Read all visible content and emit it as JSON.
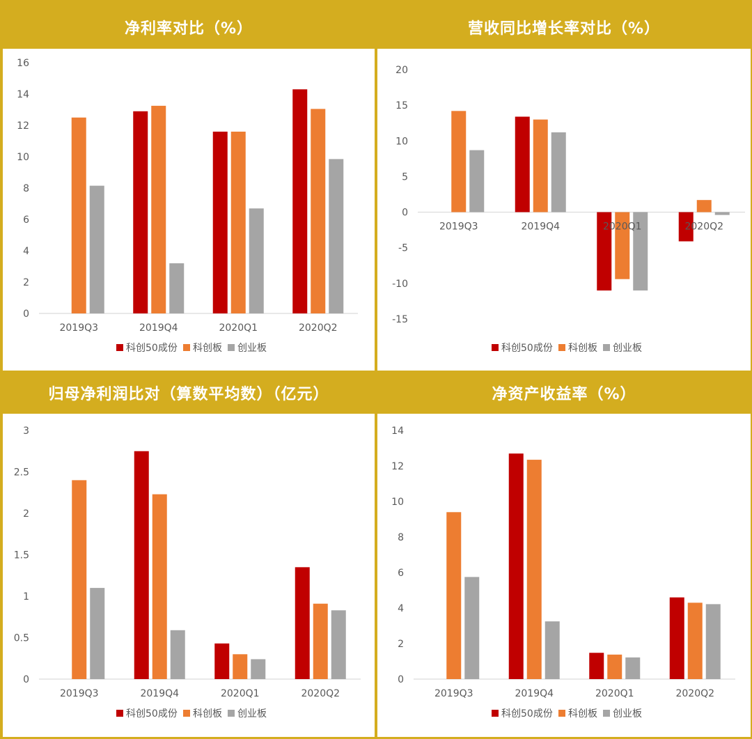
{
  "colors": {
    "background": "#D4AD1F",
    "header_text": "#FFFFFF",
    "plot_bg": "#FFFFFF",
    "axis": "#D9D9D9",
    "label_text": "#595959"
  },
  "chart_data": [
    {
      "type": "bar",
      "title": "净利率对比（%）",
      "categories": [
        "2019Q3",
        "2019Q4",
        "2020Q1",
        "2020Q2"
      ],
      "series": [
        {
          "name": "科创50成份",
          "color": "#C00000",
          "values": [
            null,
            12.9,
            11.6,
            14.3
          ]
        },
        {
          "name": "科创板",
          "color": "#ED7D31",
          "values": [
            12.5,
            13.25,
            11.6,
            13.05
          ]
        },
        {
          "name": "创业板",
          "color": "#A5A5A5",
          "values": [
            8.15,
            3.2,
            6.7,
            9.85
          ]
        }
      ],
      "ylim": [
        0,
        16
      ],
      "yticks": [
        0,
        2,
        4,
        6,
        8,
        10,
        12,
        14,
        16
      ],
      "legend": "bottom",
      "grid": false
    },
    {
      "type": "bar",
      "title": "营收同比增长率对比（%）",
      "categories": [
        "2019Q3",
        "2019Q4",
        "2020Q1",
        "2020Q2"
      ],
      "series": [
        {
          "name": "科创50成份",
          "color": "#C00000",
          "values": [
            null,
            13.4,
            -11.0,
            -4.1
          ]
        },
        {
          "name": "科创板",
          "color": "#ED7D31",
          "values": [
            14.2,
            13.0,
            -9.4,
            1.7
          ]
        },
        {
          "name": "创业板",
          "color": "#A5A5A5",
          "values": [
            8.7,
            11.2,
            -11.0,
            -0.4
          ]
        }
      ],
      "ylim": [
        -15,
        20
      ],
      "yticks": [
        -15,
        -10,
        -5,
        0,
        5,
        10,
        15,
        20
      ],
      "legend": "bottom",
      "grid": false
    },
    {
      "type": "bar",
      "title": "归母净利润比对（算数平均数）（亿元）",
      "categories": [
        "2019Q3",
        "2019Q4",
        "2020Q1",
        "2020Q2"
      ],
      "series": [
        {
          "name": "科创50成份",
          "color": "#C00000",
          "values": [
            null,
            2.75,
            0.43,
            1.35
          ]
        },
        {
          "name": "科创板",
          "color": "#ED7D31",
          "values": [
            2.4,
            2.23,
            0.3,
            0.91
          ]
        },
        {
          "name": "创业板",
          "color": "#A5A5A5",
          "values": [
            1.1,
            0.59,
            0.24,
            0.83
          ]
        }
      ],
      "ylim": [
        0,
        3
      ],
      "yticks": [
        0,
        0.5,
        1,
        1.5,
        2,
        2.5,
        3
      ],
      "legend": "bottom",
      "grid": false
    },
    {
      "type": "bar",
      "title": "净资产收益率（%）",
      "categories": [
        "2019Q3",
        "2019Q4",
        "2020Q1",
        "2020Q2"
      ],
      "series": [
        {
          "name": "科创50成份",
          "color": "#C00000",
          "values": [
            null,
            12.7,
            1.48,
            4.6
          ]
        },
        {
          "name": "科创板",
          "color": "#ED7D31",
          "values": [
            9.4,
            12.35,
            1.38,
            4.3
          ]
        },
        {
          "name": "创业板",
          "color": "#A5A5A5",
          "values": [
            5.75,
            3.25,
            1.22,
            4.22
          ]
        }
      ],
      "ylim": [
        0,
        14
      ],
      "yticks": [
        0,
        2,
        4,
        6,
        8,
        10,
        12,
        14
      ],
      "legend": "bottom",
      "grid": false
    }
  ]
}
